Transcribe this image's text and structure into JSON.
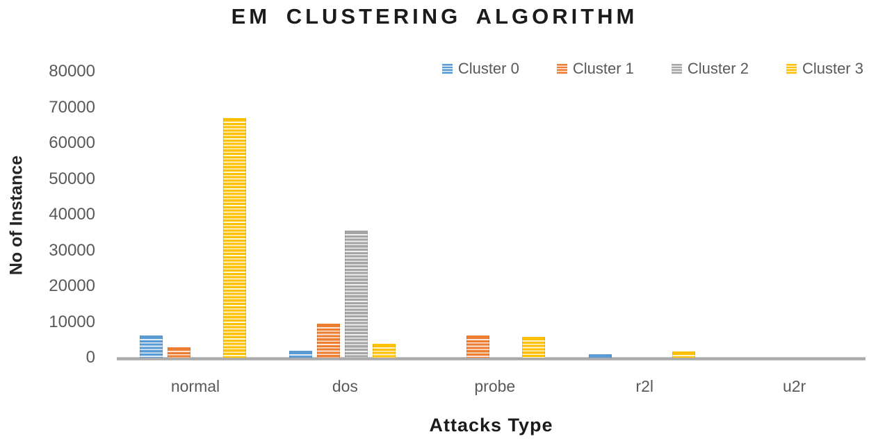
{
  "chart_data": {
    "type": "bar",
    "title": "EM CLUSTERING ALGORITHM",
    "xlabel": "Attacks Type",
    "ylabel": "No of Instance",
    "categories": [
      "normal",
      "dos",
      "probe",
      "r2l",
      "u2r"
    ],
    "series": [
      {
        "name": "Cluster 0",
        "color": "#5B9BD5",
        "values": [
          6200,
          1900,
          0,
          1000,
          0
        ]
      },
      {
        "name": "Cluster 1",
        "color": "#ED7D31",
        "values": [
          2900,
          9500,
          6200,
          0,
          0
        ]
      },
      {
        "name": "Cluster 2",
        "color": "#A5A5A5",
        "values": [
          0,
          35500,
          0,
          0,
          0
        ]
      },
      {
        "name": "Cluster 3",
        "color": "#FFC000",
        "values": [
          67000,
          3800,
          5800,
          1800,
          0
        ]
      }
    ],
    "ylim": [
      0,
      80000
    ],
    "ytick_step": 10000,
    "yticks": [
      0,
      10000,
      20000,
      30000,
      40000,
      50000,
      60000,
      70000,
      80000
    ],
    "grid": false,
    "legend_position": "top-right",
    "bar_pattern": "horizontal-stripes",
    "axis_line_color": "#A6A6A6",
    "text_color_axis": "#595959",
    "text_color_title": "#1B1B1B"
  }
}
